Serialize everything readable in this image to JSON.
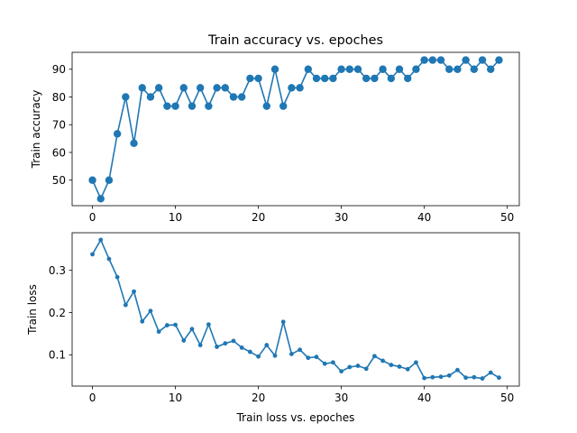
{
  "chart_data": [
    {
      "type": "line",
      "title": "Train accuracy vs. epoches",
      "xlabel": "",
      "ylabel": "Train accuracy",
      "xlim": [
        -2.45,
        51.45
      ],
      "ylim": [
        40.8,
        96.1
      ],
      "xticks": [
        0,
        10,
        20,
        30,
        40,
        50
      ],
      "yticks": [
        50,
        60,
        70,
        80,
        90
      ],
      "grid": false,
      "marker": "circle-large",
      "color": "#1f77b4",
      "series": [
        {
          "x": [
            0,
            1,
            2,
            3,
            4,
            5,
            6,
            7,
            8,
            9,
            10,
            11,
            12,
            13,
            14,
            15,
            16,
            17,
            18,
            19,
            20,
            21,
            22,
            23,
            24,
            25,
            26,
            27,
            28,
            29,
            30,
            31,
            32,
            33,
            34,
            35,
            36,
            37,
            38,
            39,
            40,
            41,
            42,
            43,
            44,
            45,
            46,
            47,
            48,
            49
          ],
          "values": [
            50,
            43.3,
            50,
            66.7,
            80,
            63.3,
            83.3,
            80,
            83.3,
            76.7,
            76.7,
            83.3,
            76.7,
            83.3,
            76.7,
            83.3,
            83.3,
            80,
            80,
            86.7,
            86.7,
            76.7,
            90,
            76.7,
            83.3,
            83.3,
            90,
            86.7,
            86.7,
            86.7,
            90,
            90,
            90,
            86.7,
            86.7,
            90,
            86.7,
            90,
            86.7,
            90,
            93.3,
            93.3,
            93.3,
            90,
            90,
            93.3,
            90,
            93.3,
            90,
            93.3
          ]
        }
      ]
    },
    {
      "type": "line",
      "title": "",
      "xlabel": "Train loss vs. epoches",
      "ylabel": "Train loss",
      "xlim": [
        -2.45,
        51.45
      ],
      "ylim": [
        0.026,
        0.389
      ],
      "xticks": [
        0,
        10,
        20,
        30,
        40,
        50
      ],
      "yticks": [
        0.1,
        0.2,
        0.3
      ],
      "grid": false,
      "marker": "dot-small",
      "color": "#1f77b4",
      "series": [
        {
          "x": [
            0,
            1,
            2,
            3,
            4,
            5,
            6,
            7,
            8,
            9,
            10,
            11,
            12,
            13,
            14,
            15,
            16,
            17,
            18,
            19,
            20,
            21,
            22,
            23,
            24,
            25,
            26,
            27,
            28,
            29,
            30,
            31,
            32,
            33,
            34,
            35,
            36,
            37,
            38,
            39,
            40,
            41,
            42,
            43,
            44,
            45,
            46,
            47,
            48,
            49
          ],
          "values": [
            0.338,
            0.372,
            0.327,
            0.284,
            0.218,
            0.25,
            0.179,
            0.204,
            0.155,
            0.17,
            0.171,
            0.134,
            0.161,
            0.123,
            0.172,
            0.119,
            0.127,
            0.133,
            0.117,
            0.107,
            0.096,
            0.123,
            0.098,
            0.178,
            0.102,
            0.112,
            0.093,
            0.095,
            0.079,
            0.082,
            0.061,
            0.071,
            0.074,
            0.067,
            0.097,
            0.086,
            0.076,
            0.072,
            0.066,
            0.082,
            0.045,
            0.047,
            0.048,
            0.051,
            0.064,
            0.046,
            0.047,
            0.044,
            0.058,
            0.046
          ]
        }
      ]
    }
  ]
}
